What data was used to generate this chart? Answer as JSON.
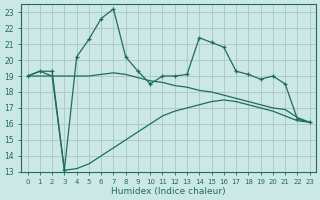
{
  "xlabel": "Humidex (Indice chaleur)",
  "background_color": "#cce8e4",
  "grid_color": "#aaccca",
  "line_color": "#1e6b65",
  "xlim": [
    -0.5,
    23.5
  ],
  "ylim": [
    13,
    23.5
  ],
  "xticks": [
    0,
    1,
    2,
    3,
    4,
    5,
    6,
    7,
    8,
    9,
    10,
    11,
    12,
    13,
    14,
    15,
    16,
    17,
    18,
    19,
    20,
    21,
    22,
    23
  ],
  "yticks": [
    13,
    14,
    15,
    16,
    17,
    18,
    19,
    20,
    21,
    22,
    23
  ],
  "main_y": [
    19,
    19.3,
    19.3,
    13.1,
    20.2,
    21.3,
    22.6,
    23.2,
    20.2,
    19.3,
    18.5,
    19.0,
    19.0,
    19.1,
    21.4,
    21.1,
    20.8,
    19.3,
    19.1,
    18.8,
    19.0,
    18.5,
    16.3,
    16.1
  ],
  "upper_y": [
    19,
    19.3,
    19.0,
    19.0,
    19.0,
    19.0,
    19.1,
    19.2,
    19.1,
    18.9,
    18.7,
    18.6,
    18.4,
    18.3,
    18.1,
    18.0,
    17.8,
    17.6,
    17.4,
    17.2,
    17.0,
    16.9,
    16.4,
    16.1
  ],
  "lower_y": [
    19,
    19.0,
    19.0,
    13.1,
    13.2,
    13.5,
    14.0,
    14.5,
    15.0,
    15.5,
    16.0,
    16.5,
    16.8,
    17.0,
    17.2,
    17.4,
    17.5,
    17.4,
    17.2,
    17.0,
    16.8,
    16.5,
    16.2,
    16.1
  ]
}
